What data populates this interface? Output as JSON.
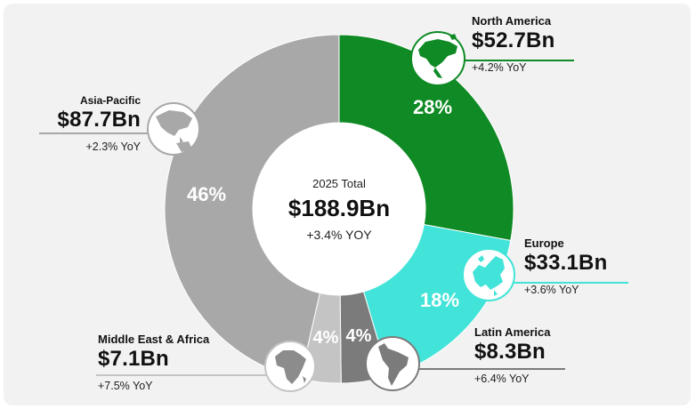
{
  "chart_data": {
    "type": "pie",
    "variant": "donut",
    "center": {
      "title": "2025 Total",
      "value": "$188.9Bn",
      "yoy": "+3.4% YOY"
    },
    "slices": [
      {
        "name": "North America",
        "value_label": "$52.7Bn",
        "value": 52.7,
        "percent_label": "28%",
        "yoy": "+4.2% YoY",
        "color": "#0f8a24",
        "icon": "north-america-map-icon"
      },
      {
        "name": "Europe",
        "value_label": "$33.1Bn",
        "value": 33.1,
        "percent_label": "18%",
        "yoy": "+3.6% YoY",
        "color": "#42e3d8",
        "icon": "europe-map-icon"
      },
      {
        "name": "Latin America",
        "value_label": "$8.3Bn",
        "value": 8.3,
        "percent_label": "4%",
        "yoy": "+6.4% YoY",
        "color": "#7b7b7b",
        "icon": "south-america-map-icon"
      },
      {
        "name": "Middle East & Africa",
        "value_label": "$7.1Bn",
        "value": 7.1,
        "percent_label": "4%",
        "yoy": "+7.5% YoY",
        "color": "#c4c4c4",
        "icon": "africa-map-icon"
      },
      {
        "name": "Asia-Pacific",
        "value_label": "$87.7Bn",
        "value": 87.7,
        "percent_label": "46%",
        "yoy": "+2.3% YoY",
        "color": "#a8a8a8",
        "icon": "asia-pacific-map-icon"
      }
    ],
    "leader_line_colors": {
      "North America": "#0f8a24",
      "Europe": "#42e3d8",
      "Latin America": "#7b7b7b",
      "Middle East & Africa": "#c4c4c4",
      "Asia-Pacific": "#a8a8a8"
    }
  }
}
